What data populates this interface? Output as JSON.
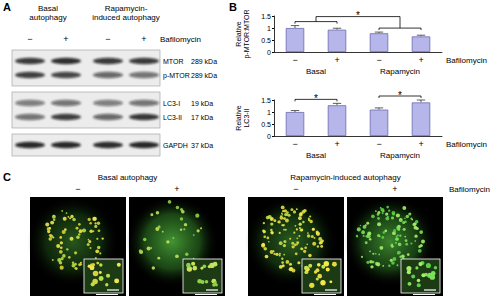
{
  "panels": [
    "A",
    "B",
    "C"
  ],
  "blot": {
    "groups": [
      "Basal\nautophagy",
      "Rapamycin-\ninduced autophagy"
    ],
    "signs": [
      "−",
      "+",
      "−",
      "+"
    ],
    "treatment_label": "Bafilomycin",
    "strips": [
      [
        {
          "name": "MTOR",
          "size": "289 kDa"
        },
        {
          "name": "p-MTOR",
          "size": "289 kDa"
        }
      ],
      [
        {
          "name": "LC3-I",
          "size": "19 kDa"
        },
        {
          "name": "LC3-II",
          "size": "17 kDa"
        }
      ],
      [
        {
          "name": "GAPDH",
          "size": "37 kDa"
        }
      ]
    ]
  },
  "chart_data": [
    {
      "type": "bar",
      "y_label": "Relative\np-MTOR:MTOR",
      "categories": [
        "−",
        "+",
        "−",
        "+"
      ],
      "groups": [
        {
          "label": "Basal",
          "span": [
            0,
            1
          ]
        },
        {
          "label": "Rapamycin",
          "span": [
            2,
            3
          ]
        }
      ],
      "treatment_label": "Bafilomycin",
      "values": [
        1.0,
        0.93,
        0.78,
        0.65
      ],
      "errors": [
        0.1,
        0.06,
        0.05,
        0.05
      ],
      "ylim": [
        0,
        1.5
      ],
      "yticks": [
        0,
        0.5,
        1,
        1.5
      ],
      "color": "#b6b6ea",
      "grid": false,
      "significance": [
        {
          "between": [
            [
              0,
              1
            ],
            [
              2,
              3
            ]
          ],
          "label": "*"
        }
      ]
    },
    {
      "type": "bar",
      "y_label": "Relative\nLC3-II",
      "categories": [
        "−",
        "+",
        "−",
        "+"
      ],
      "groups": [
        {
          "label": "Basal",
          "span": [
            0,
            1
          ]
        },
        {
          "label": "Rapamycin",
          "span": [
            2,
            3
          ]
        }
      ],
      "treatment_label": "Bafilomycin",
      "values": [
        1.0,
        1.28,
        1.1,
        1.4
      ],
      "errors": [
        0.06,
        0.08,
        0.07,
        0.1
      ],
      "ylim": [
        0,
        1.5
      ],
      "yticks": [
        0,
        0.5,
        1,
        1.5
      ],
      "color": "#b6b6ea",
      "grid": false,
      "significance": [
        {
          "between": [
            [
              0,
              1
            ]
          ],
          "label": "*"
        },
        {
          "between": [
            [
              2,
              3
            ]
          ],
          "label": "*"
        }
      ]
    }
  ],
  "microscopy": {
    "groups": [
      "Basal autophagy",
      "Rapamycin-induced autophagy"
    ],
    "signs": [
      "−",
      "+",
      "−",
      "+"
    ],
    "treatment_label": "Bafilomycin"
  }
}
